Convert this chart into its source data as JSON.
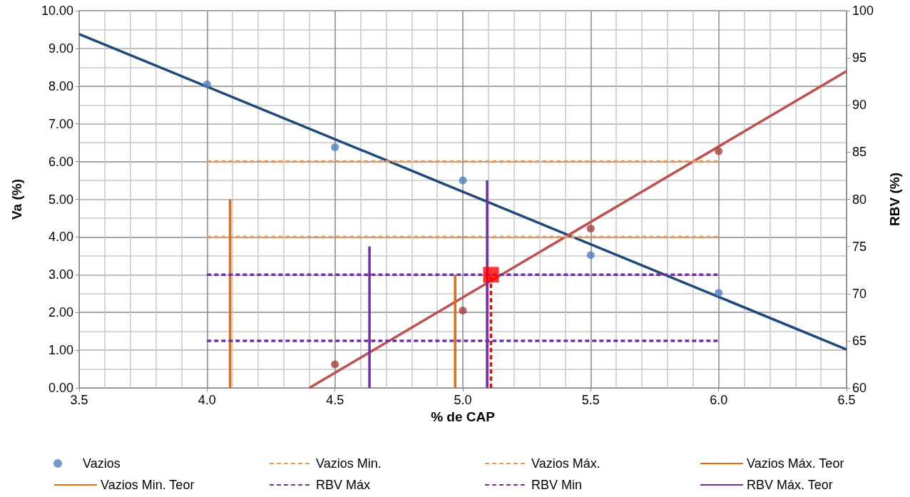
{
  "chart_data": {
    "type": "scatter",
    "xlabel": "% de CAP",
    "ylabel": "Va (%)",
    "y2label": "RBV (%)",
    "xlim": [
      3.5,
      6.5
    ],
    "xticks": [
      {
        "value": 3.5,
        "label": "3.5"
      },
      {
        "value": 4,
        "label": "4.0"
      },
      {
        "value": 4.5,
        "label": "4.5"
      },
      {
        "value": 5,
        "label": "5.0"
      },
      {
        "value": 5.5,
        "label": "5.5"
      },
      {
        "value": 6,
        "label": "6.0"
      },
      {
        "value": 6.5,
        "label": "6.5"
      }
    ],
    "ylim": [
      0,
      10
    ],
    "yticks": [
      {
        "value": 0,
        "label": "0.00"
      },
      {
        "value": 1,
        "label": "1.00"
      },
      {
        "value": 2,
        "label": "2.00"
      },
      {
        "value": 3,
        "label": "3.00"
      },
      {
        "value": 4,
        "label": "4.00"
      },
      {
        "value": 5,
        "label": "5.00"
      },
      {
        "value": 6,
        "label": "6.00"
      },
      {
        "value": 7,
        "label": "7.00"
      },
      {
        "value": 8,
        "label": "8.00"
      },
      {
        "value": 9,
        "label": "9.00"
      },
      {
        "value": 10,
        "label": "10.00"
      }
    ],
    "y2lim": [
      60,
      100
    ],
    "y2ticks": [
      60,
      65,
      70,
      75,
      80,
      85,
      90,
      95,
      100
    ],
    "grid": true,
    "legend": "bottom",
    "series": [
      {
        "name": "Vazios",
        "marker": "circle",
        "color": "#4f81bd",
        "x": [
          4.0,
          4.5,
          5.0,
          5.5,
          6.0
        ],
        "values": [
          8.05,
          6.38,
          5.5,
          3.52,
          2.52
        ]
      },
      {
        "type": "line",
        "marker": "none",
        "line_style": "solid",
        "color": "#1f497d",
        "x": [
          3.5,
          6.5
        ],
        "values": [
          9.38,
          1.02
        ]
      },
      {
        "axis": "y2",
        "marker": "circle",
        "color": "#a5403d",
        "x": [
          4.5,
          5.0,
          5.5,
          6.0
        ],
        "values": [
          62.5,
          68.2,
          76.9,
          85.1
        ]
      },
      {
        "type": "line",
        "axis": "y2",
        "marker": "none",
        "line_style": "solid",
        "color": "#c0504d",
        "x": [
          4.4,
          6.5
        ],
        "values": [
          60,
          93.6
        ]
      },
      {
        "name": "Vazios Min.",
        "type": "line",
        "marker": "none",
        "line_style": "dashed",
        "color": "#f79646",
        "x": [
          4.0,
          6.0
        ],
        "values": [
          4,
          4
        ]
      },
      {
        "name": "Vazios Máx.",
        "type": "line",
        "marker": "none",
        "line_style": "dashed",
        "color": "#f79646",
        "x": [
          4.0,
          6.0
        ],
        "values": [
          6,
          6
        ]
      },
      {
        "name": "Vazios Máx. Teor",
        "type": "line",
        "marker": "none",
        "line_style": "solid",
        "color": "#e46c0a",
        "x": [
          4.09,
          4.09
        ],
        "values": [
          0,
          5
        ]
      },
      {
        "name": "Vazios Min. Teor",
        "type": "line",
        "marker": "none",
        "line_style": "solid",
        "color": "#e46c0a",
        "x": [
          4.97,
          4.97
        ],
        "values": [
          0,
          3
        ]
      },
      {
        "name": "RBV Máx",
        "type": "line",
        "axis": "y2",
        "marker": "none",
        "line_style": "dashed",
        "color": "#7030a0",
        "x": [
          4.0,
          6.0
        ],
        "values": [
          72,
          72
        ]
      },
      {
        "name": "RBV Min",
        "type": "line",
        "axis": "y2",
        "marker": "none",
        "line_style": "dashed",
        "color": "#7030a0",
        "x": [
          4.0,
          6.0
        ],
        "values": [
          65,
          65
        ]
      },
      {
        "name": "RBV Máx. Teor",
        "type": "line",
        "axis": "y2",
        "marker": "none",
        "line_style": "solid",
        "color": "#7030a0",
        "x": [
          4.635,
          4.635
        ],
        "values": [
          60,
          75
        ]
      },
      {
        "type": "line",
        "axis": "y2",
        "marker": "none",
        "line_style": "solid",
        "color": "#7030a0",
        "x": [
          5.095,
          5.095
        ],
        "values": [
          60,
          82
        ]
      },
      {
        "type": "line",
        "marker": "none",
        "line_style": "dashed",
        "color": "#ff0000",
        "x": [
          5.11,
          5.11
        ],
        "values": [
          0,
          3
        ]
      },
      {
        "marker": "square",
        "color": "#ff0000",
        "x": [
          5.11
        ],
        "values": [
          3
        ]
      }
    ]
  }
}
